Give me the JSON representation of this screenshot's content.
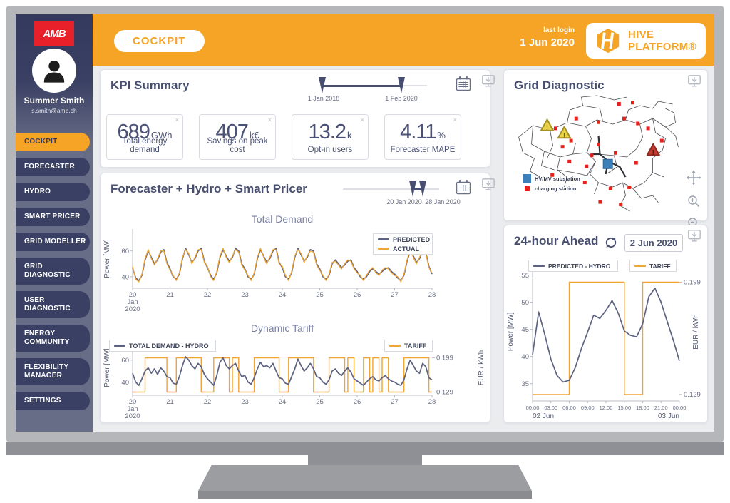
{
  "sidebar": {
    "logo_text": "AMB",
    "user": {
      "name": "Summer Smith",
      "email": "s.smith@amb.ch"
    },
    "items": [
      {
        "label": "COCKPIT",
        "active": true
      },
      {
        "label": "FORECASTER",
        "active": false
      },
      {
        "label": "HYDRO",
        "active": false
      },
      {
        "label": "SMART PRICER",
        "active": false
      },
      {
        "label": "GRID MODELLER",
        "active": false
      },
      {
        "label": "GRID DIAGNOSTIC",
        "active": false
      },
      {
        "label": "USER DIAGNOSTIC",
        "active": false
      },
      {
        "label": "ENERGY COMMUNITY",
        "active": false
      },
      {
        "label": "FLEXIBILITY MANAGER",
        "active": false
      },
      {
        "label": "SETTINGS",
        "active": false
      }
    ]
  },
  "header": {
    "page_pill": "COCKPIT",
    "last_login_label": "last login",
    "last_login_date": "1 Jun 2020",
    "brand_line1": "HIVE",
    "brand_line2": "PLATFORM®"
  },
  "kpi_summary": {
    "title": "KPI Summary",
    "slider": {
      "start_label": "1 Jan 2018",
      "end_label": "1 Feb 2020"
    },
    "close_glyph": "×",
    "cards": [
      {
        "value": "689",
        "unit": "GWh",
        "label": "Total energy demand"
      },
      {
        "value": "407",
        "unit": "k€",
        "label": "Savings on peak cost"
      },
      {
        "value": "13.2",
        "unit": "k",
        "label": "Opt-in users"
      },
      {
        "value": "4.11",
        "unit": "%",
        "label": "Forecaster MAPE"
      }
    ]
  },
  "forecaster": {
    "title": "Forecaster + Hydro + Smart Pricer",
    "slider": {
      "start_label": "20 Jan 2020",
      "end_label": "28 Jan 2020"
    }
  },
  "grid_diagnostic": {
    "title": "Grid Diagnostic",
    "legend": [
      {
        "label": "HV/MV substation",
        "color": "#3D7FB8"
      },
      {
        "label": "charging station",
        "color": "#E8211D"
      }
    ],
    "map": {
      "substations_pct": [
        [
          55.5,
          58
        ]
      ],
      "warnings_yellow_pct": [
        [
          20,
          27
        ],
        [
          30,
          33
        ]
      ],
      "warnings_red_pct": [
        [
          82,
          47
        ]
      ],
      "charging_pct": [
        [
          62,
          9
        ],
        [
          70,
          8
        ],
        [
          37,
          21
        ],
        [
          25,
          29
        ],
        [
          50,
          24
        ],
        [
          65,
          21
        ],
        [
          73,
          25
        ],
        [
          87,
          39
        ],
        [
          29,
          44
        ],
        [
          50,
          42
        ],
        [
          60,
          49
        ],
        [
          33,
          56
        ],
        [
          43,
          60
        ],
        [
          23,
          67
        ],
        [
          42,
          73
        ],
        [
          57,
          78
        ],
        [
          68,
          77
        ],
        [
          51,
          89
        ],
        [
          63,
          91
        ],
        [
          72,
          57
        ],
        [
          79,
          29
        ],
        [
          34,
          39
        ],
        [
          46,
          51
        ]
      ]
    }
  },
  "day_ahead": {
    "title": "24-hour Ahead",
    "date": "2 Jun 2020"
  },
  "colors": {
    "accent_orange": "#F5A425",
    "navy": "#3A4063",
    "chart_gray": "#5C6280",
    "chart_orange": "#F0A431",
    "red": "#E8211D",
    "blue": "#3D7FB8"
  },
  "chart_data": [
    {
      "id": "total_demand",
      "type": "line",
      "title": "Total Demand",
      "ylabel": "Power [MW]",
      "x_start": "20 Jan 2020",
      "x_end": "28 Jan 2020",
      "x_step_hours": 2,
      "xticks": [
        "20",
        "21",
        "22",
        "23",
        "24",
        "25",
        "26",
        "27",
        "28"
      ],
      "xtick_sub": [
        "Jan",
        "2020"
      ],
      "yticks": [
        40,
        60
      ],
      "ylim": [
        31,
        77
      ],
      "legend_position": "top-right",
      "series": [
        {
          "name": "PREDICTED",
          "color": "#5C6280",
          "values": [
            47,
            39,
            37,
            41,
            53,
            60,
            55,
            50,
            53,
            59,
            61,
            51,
            46,
            40,
            38,
            42,
            54,
            62,
            57,
            51,
            54,
            60,
            62,
            52,
            47,
            41,
            38,
            43,
            55,
            61,
            56,
            52,
            55,
            62,
            60,
            50,
            46,
            40,
            38,
            42,
            54,
            61,
            56,
            51,
            54,
            60,
            62,
            51,
            47,
            40,
            38,
            43,
            55,
            62,
            57,
            52,
            55,
            61,
            60,
            50,
            46,
            40,
            38,
            41,
            50,
            53,
            50,
            47,
            49,
            52,
            53,
            47,
            44,
            40,
            38,
            40,
            44,
            46,
            44,
            42,
            44,
            46,
            47,
            44,
            42,
            39,
            37,
            41,
            52,
            60,
            56,
            51,
            54,
            60,
            59,
            48,
            42
          ]
        },
        {
          "name": "ACTUAL",
          "color": "#F0A431",
          "values": [
            48,
            38,
            36,
            42,
            54,
            61,
            54,
            49,
            54,
            60,
            60,
            50,
            45,
            41,
            37,
            43,
            55,
            61,
            58,
            50,
            55,
            61,
            61,
            51,
            48,
            40,
            37,
            44,
            56,
            62,
            55,
            51,
            56,
            61,
            59,
            49,
            45,
            41,
            37,
            43,
            55,
            62,
            55,
            50,
            55,
            61,
            61,
            50,
            48,
            41,
            37,
            44,
            56,
            61,
            58,
            51,
            56,
            60,
            59,
            49,
            45,
            41,
            37,
            42,
            51,
            52,
            49,
            46,
            50,
            53,
            52,
            46,
            43,
            41,
            37,
            41,
            45,
            47,
            43,
            41,
            45,
            47,
            46,
            43,
            41,
            40,
            36,
            42,
            53,
            61,
            55,
            50,
            55,
            61,
            58,
            47,
            43
          ]
        }
      ]
    },
    {
      "id": "dynamic_tariff",
      "type": "line",
      "title": "Dynamic Tariff",
      "ylabel": "Power [MW]",
      "y2label": "EUR / kWh",
      "x_start": "20 Jan 2020",
      "x_end": "28 Jan 2020",
      "x_step_hours": 2,
      "xticks": [
        "20",
        "21",
        "22",
        "23",
        "24",
        "25",
        "26",
        "27",
        "28"
      ],
      "xtick_sub": [
        "Jan",
        "2020"
      ],
      "yticks": [
        40,
        60
      ],
      "ylim": [
        28,
        78
      ],
      "y2ticks": [
        0.129,
        0.199
      ],
      "series": [
        {
          "name": "TOTAL DEMAND - HYDRO",
          "color": "#5C6280",
          "values": [
            48,
            40,
            37,
            43,
            50,
            53,
            48,
            52,
            47,
            53,
            50,
            45,
            44,
            39,
            38,
            45,
            55,
            63,
            60,
            55,
            52,
            57,
            54,
            47,
            43,
            40,
            37,
            46,
            58,
            62,
            55,
            52,
            55,
            57,
            50,
            45,
            46,
            40,
            38,
            44,
            52,
            58,
            54,
            55,
            53,
            57,
            50,
            44,
            43,
            39,
            38,
            45,
            52,
            61,
            55,
            50,
            53,
            57,
            52,
            45,
            44,
            40,
            38,
            42,
            50,
            52,
            48,
            46,
            50,
            53,
            49,
            43,
            41,
            39,
            37,
            40,
            43,
            45,
            42,
            41,
            44,
            46,
            43,
            41,
            40,
            38,
            37,
            42,
            52,
            60,
            55,
            50,
            48,
            57,
            54,
            44,
            42
          ]
        }
      ],
      "tariff": {
        "name": "TARIFF",
        "color": "#F0A431",
        "low": 0.129,
        "high": 0.199,
        "segments": [
          0,
          0,
          0,
          0,
          1,
          1,
          1,
          1,
          1,
          1,
          1,
          0,
          0,
          0,
          1,
          1,
          1,
          1,
          1,
          1,
          1,
          1,
          0,
          0,
          0,
          0,
          1,
          1,
          1,
          1,
          1,
          0,
          1,
          1,
          0,
          0,
          0,
          0,
          0,
          1,
          1,
          1,
          1,
          1,
          1,
          1,
          1,
          0,
          0,
          0,
          1,
          1,
          1,
          1,
          1,
          1,
          1,
          1,
          0,
          0,
          0,
          0,
          0,
          1,
          1,
          1,
          1,
          1,
          0,
          1,
          1,
          0,
          0,
          0,
          1,
          1,
          0,
          1,
          1,
          0,
          1,
          1,
          0,
          0,
          0,
          0,
          0,
          1,
          1,
          1,
          1,
          1,
          1,
          1,
          1,
          0
        ]
      }
    },
    {
      "id": "day_ahead_forecast",
      "type": "line",
      "title": "24-hour Ahead",
      "ylabel": "Power [MW]",
      "y2label": "EUR / kWh",
      "xticks": [
        "00:00",
        "03:00",
        "06:00",
        "09:00",
        "12:00",
        "15:00",
        "18:00",
        "21:00",
        "00:00"
      ],
      "x_day_labels": [
        "02 Jun",
        "03 Jun"
      ],
      "yticks": [
        35,
        40,
        45,
        50,
        55
      ],
      "ylim": [
        31.8,
        57.3
      ],
      "y2ticks": [
        0.129,
        0.199
      ],
      "series": [
        {
          "name": "PREDICTED - HYDRO",
          "color": "#5C6280",
          "values": [
            40.3,
            48.2,
            44.0,
            39.5,
            36.5,
            35.3,
            35.6,
            38.0,
            41.5,
            44.5,
            47.6,
            47.0,
            48.5,
            50.3,
            48.0,
            44.7,
            43.9,
            43.6,
            46.0,
            51.0,
            52.6,
            50.0,
            46.5,
            43.0,
            39.2
          ]
        }
      ],
      "tariff": {
        "name": "TARIFF",
        "color": "#F0A431",
        "low": 0.129,
        "high": 0.199,
        "segments": [
          0,
          0,
          0,
          0,
          0,
          0,
          1,
          1,
          1,
          1,
          1,
          1,
          1,
          1,
          1,
          0,
          0,
          0,
          1,
          1,
          1,
          1,
          1,
          1
        ]
      }
    }
  ]
}
